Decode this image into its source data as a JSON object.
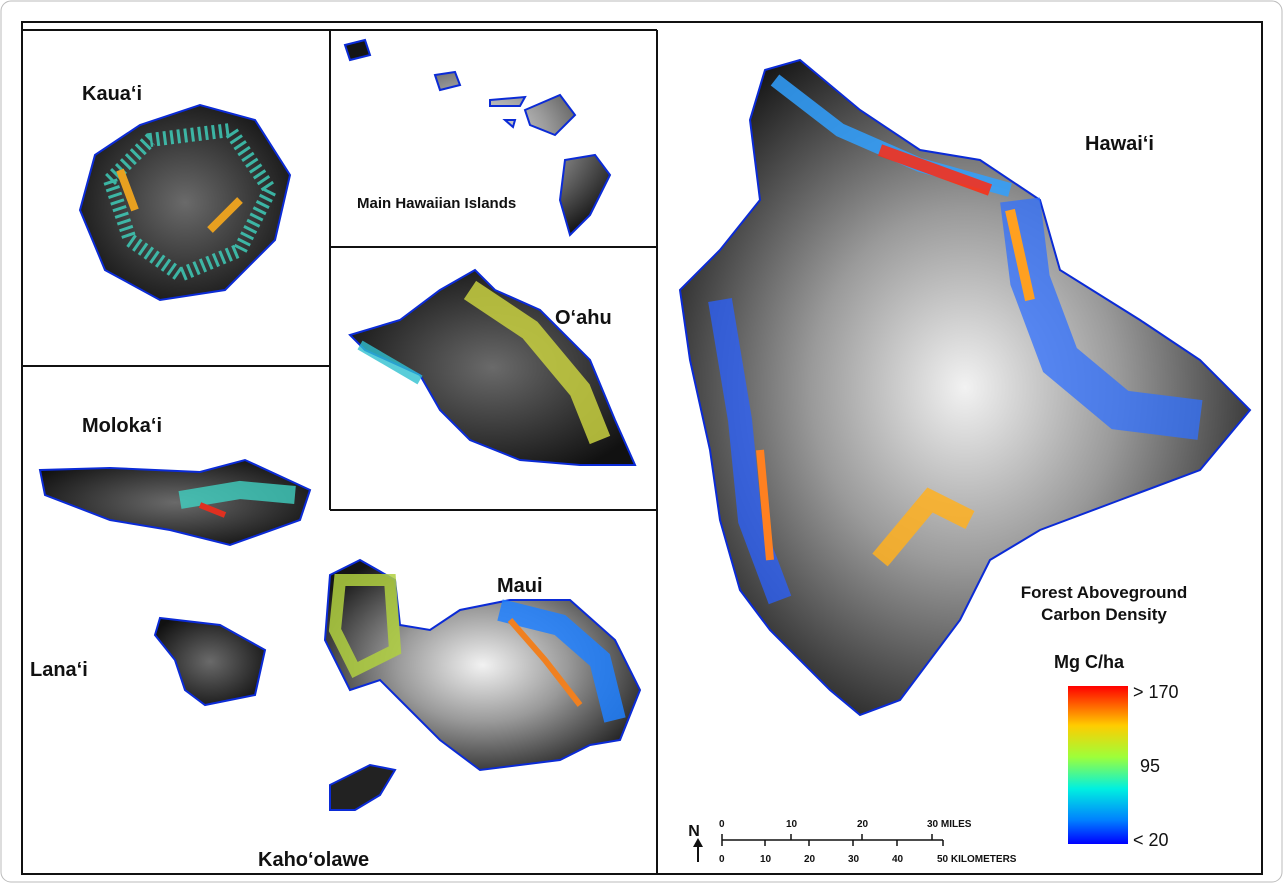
{
  "labels": {
    "kauai": "Kaua‘i",
    "main_islands": "Main Hawaiian Islands",
    "oahu": "O‘ahu",
    "molokai": "Moloka‘i",
    "lanai": "Lana‘i",
    "maui": "Maui",
    "kahoolawe": "Kaho‘olawe",
    "hawaii": "Hawai‘i"
  },
  "legend": {
    "title": [
      "Forest Aboveground",
      "Carbon Density"
    ],
    "units": "Mg C/ha",
    "labels": [
      "> 170",
      "95",
      "< 20"
    ]
  },
  "scale_bar": {
    "north": "N",
    "miles": [
      "0",
      "10",
      "20",
      "30 MILES"
    ],
    "kilometers": [
      "0",
      "10",
      "20",
      "30",
      "40",
      "50 KILOMETERS"
    ]
  }
}
